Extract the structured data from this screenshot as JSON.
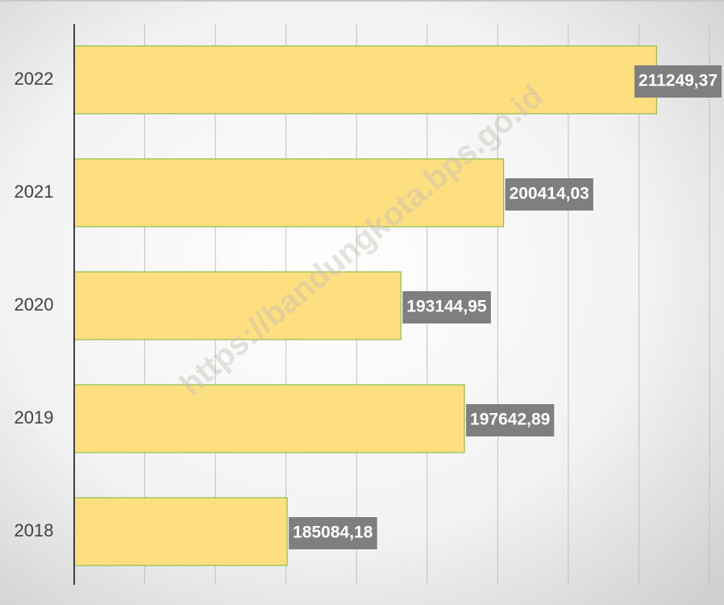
{
  "chart_data": {
    "type": "bar",
    "orientation": "horizontal",
    "categories": [
      "2022",
      "2021",
      "2020",
      "2019",
      "2018"
    ],
    "values": [
      211249.37,
      200414.03,
      193144.95,
      197642.89,
      185084.18
    ],
    "value_labels": [
      "211249,37",
      "200414,03",
      "193144,95",
      "197642,89",
      "185084,18"
    ],
    "color": "#fedf80",
    "xlim": [
      170000,
      215000
    ],
    "xticks": [
      170000,
      175000,
      180000,
      185000,
      190000,
      195000,
      200000,
      205000,
      210000,
      215000
    ],
    "grid": true,
    "watermark": "https://bandungkota.bps.go.id"
  }
}
